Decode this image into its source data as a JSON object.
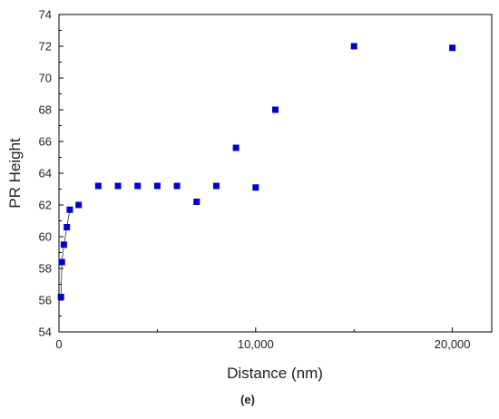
{
  "chart_data": {
    "type": "scatter",
    "title": "",
    "xlabel": "Distance (nm)",
    "ylabel": "PR Height",
    "caption": "(e)",
    "xlim": [
      0,
      22000
    ],
    "ylim": [
      54,
      74
    ],
    "xticks": [
      0,
      10000,
      20000
    ],
    "xtick_labels": [
      "0",
      "10,000",
      "20,000"
    ],
    "yticks": [
      54,
      56,
      58,
      60,
      62,
      64,
      66,
      68,
      70,
      72,
      74
    ],
    "ytick_labels": [
      "54",
      "56",
      "58",
      "60",
      "62",
      "64",
      "66",
      "68",
      "70",
      "72",
      "74"
    ],
    "grid": false,
    "legend": "none",
    "marker": "square",
    "marker_color": "#0000cc",
    "series": [
      {
        "x": [
          100,
          150,
          250,
          400,
          550,
          1000,
          2000,
          3000,
          4000,
          5000,
          6000,
          7000,
          8000,
          9000,
          10000,
          11000,
          15000,
          20000
        ],
        "y": [
          56.2,
          58.4,
          59.5,
          60.6,
          61.7,
          62.0,
          63.2,
          63.2,
          63.2,
          63.2,
          63.2,
          62.2,
          63.2,
          65.6,
          63.1,
          68.0,
          72.0,
          71.9
        ]
      }
    ],
    "connector_line": {
      "x": [
        100,
        150,
        250,
        400,
        550
      ],
      "y": [
        56.2,
        58.4,
        59.5,
        60.6,
        61.7
      ]
    }
  }
}
